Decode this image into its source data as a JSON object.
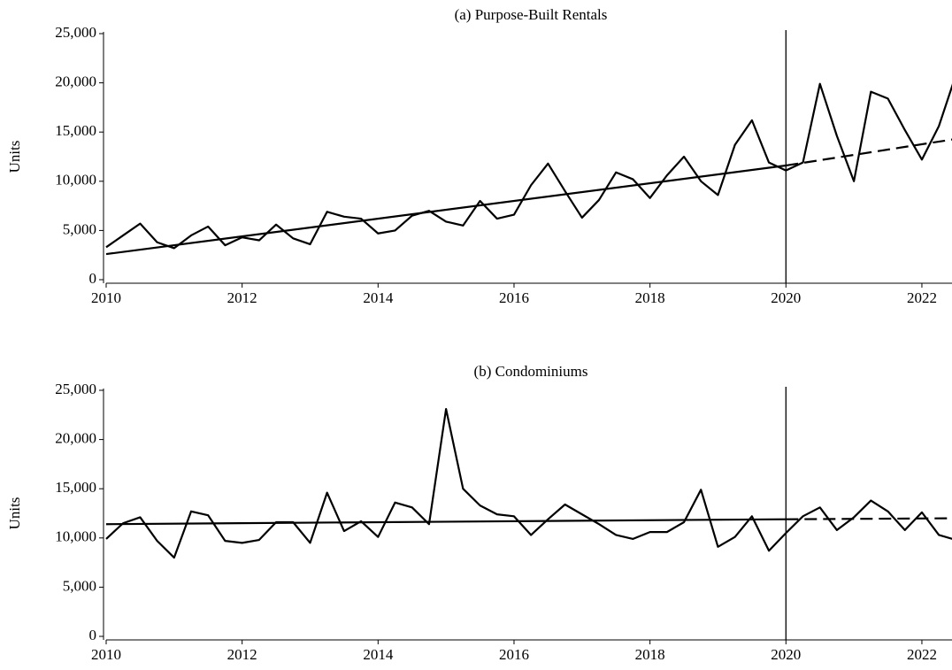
{
  "chart_data": [
    {
      "type": "line",
      "title": "(a) Purpose-Built Rentals",
      "y_label": "Units",
      "xlim": [
        2010,
        2022.5
      ],
      "xticks": [
        2010,
        2012,
        2014,
        2016,
        2018,
        2020,
        2022
      ],
      "ylim": [
        0,
        25000
      ],
      "yticks": [
        0,
        {
          "value": 5000,
          "label": "5,000"
        },
        {
          "value": 10000,
          "label": "10,000"
        },
        {
          "value": 15000,
          "label": "15,000"
        },
        {
          "value": 20000,
          "label": "20,000"
        },
        {
          "value": 25000,
          "label": "25,000"
        }
      ],
      "vline": 2020,
      "series": [
        {
          "color": "#000000",
          "dashed": false,
          "x": [
            2010,
            2010.25,
            2010.5,
            2010.75,
            2011,
            2011.25,
            2011.5,
            2011.75,
            2012,
            2012.25,
            2012.5,
            2012.75,
            2013,
            2013.25,
            2013.5,
            2013.75,
            2014,
            2014.25,
            2014.5,
            2014.75,
            2015,
            2015.25,
            2015.5,
            2015.75,
            2016,
            2016.25,
            2016.5,
            2016.75,
            2017,
            2017.25,
            2017.5,
            2017.75,
            2018,
            2018.25,
            2018.5,
            2018.75,
            2019,
            2019.25,
            2019.5,
            2019.75,
            2020,
            2020.25,
            2020.5,
            2020.75,
            2021,
            2021.25,
            2021.5,
            2021.75,
            2022,
            2022.25,
            2022.5
          ],
          "values": [
            3300,
            4500,
            5700,
            3800,
            3200,
            4500,
            5400,
            3500,
            4300,
            4000,
            5600,
            4200,
            3600,
            6900,
            6400,
            6200,
            4700,
            5000,
            6500,
            7000,
            5900,
            5500,
            8000,
            6200,
            6600,
            9600,
            11800,
            9000,
            6300,
            8100,
            10900,
            10200,
            8300,
            10600,
            12500,
            10000,
            8600,
            13700,
            16200,
            11900,
            11100,
            11900,
            19900,
            14600,
            10000,
            19100,
            18400,
            15200,
            12200,
            15600,
            20800
          ]
        },
        {
          "color": "#000000",
          "dashed": false,
          "x": [
            2010,
            2020
          ],
          "values": [
            2600,
            11600
          ]
        },
        {
          "color": "#000000",
          "dashed": true,
          "x": [
            2020,
            2022.5
          ],
          "values": [
            11600,
            14300
          ]
        }
      ]
    },
    {
      "type": "line",
      "title": "(b) Condominiums",
      "y_label": "Units",
      "xlim": [
        2010,
        2022.5
      ],
      "xticks": [
        2010,
        2012,
        2014,
        2016,
        2018,
        2020,
        2022
      ],
      "ylim": [
        0,
        25000
      ],
      "yticks": [
        0,
        {
          "value": 5000,
          "label": "5,000"
        },
        {
          "value": 10000,
          "label": "10,000"
        },
        {
          "value": 15000,
          "label": "15,000"
        },
        {
          "value": 20000,
          "label": "20,000"
        },
        {
          "value": 25000,
          "label": "25,000"
        }
      ],
      "vline": 2020,
      "series": [
        {
          "color": "#000000",
          "dashed": false,
          "x": [
            2010,
            2010.25,
            2010.5,
            2010.75,
            2011,
            2011.25,
            2011.5,
            2011.75,
            2012,
            2012.25,
            2012.5,
            2012.75,
            2013,
            2013.25,
            2013.5,
            2013.75,
            2014,
            2014.25,
            2014.5,
            2014.75,
            2015,
            2015.25,
            2015.5,
            2015.75,
            2016,
            2016.25,
            2016.5,
            2016.75,
            2017,
            2017.25,
            2017.5,
            2017.75,
            2018,
            2018.25,
            2018.5,
            2018.75,
            2019,
            2019.25,
            2019.5,
            2019.75,
            2020,
            2020.25,
            2020.5,
            2020.75,
            2021,
            2021.25,
            2021.5,
            2021.75,
            2022,
            2022.25,
            2022.5
          ],
          "values": [
            9900,
            11500,
            12100,
            9700,
            8000,
            12700,
            12300,
            9700,
            9500,
            9800,
            11600,
            11600,
            9500,
            14600,
            10700,
            11700,
            10100,
            13600,
            13100,
            11400,
            23100,
            15000,
            13300,
            12400,
            12200,
            10300,
            11900,
            13400,
            12400,
            11400,
            10300,
            9900,
            10600,
            10600,
            11600,
            14900,
            9100,
            10100,
            12200,
            8700,
            10500,
            12200,
            13100,
            10800,
            12100,
            13800,
            12700,
            10800,
            12600,
            10300,
            9800
          ]
        },
        {
          "color": "#000000",
          "dashed": false,
          "x": [
            2010,
            2020
          ],
          "values": [
            11400,
            11900
          ]
        },
        {
          "color": "#000000",
          "dashed": true,
          "x": [
            2020,
            2022.5
          ],
          "values": [
            11900,
            12000
          ]
        }
      ]
    }
  ]
}
